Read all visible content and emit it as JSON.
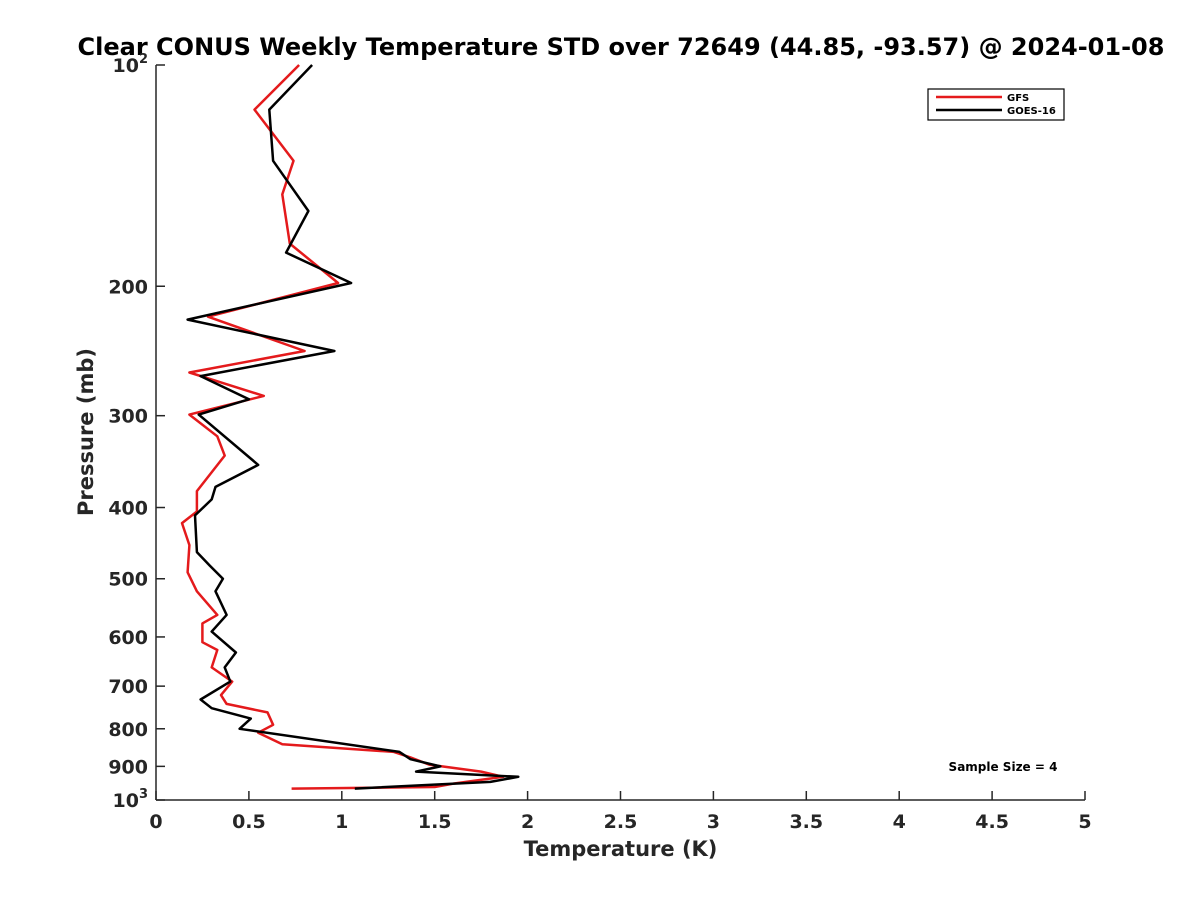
{
  "chart_data": {
    "type": "line",
    "title": "Clear CONUS Weekly Temperature STD over 72649 (44.85, -93.57) @ 2024-01-08",
    "xlabel": "Temperature (K)",
    "ylabel": "Pressure (mb)",
    "xlim": [
      0,
      5
    ],
    "ylim": [
      100,
      1000
    ],
    "y_scale": "log",
    "y_reversed": true,
    "x_ticks": [
      0,
      0.5,
      1,
      1.5,
      2,
      2.5,
      3,
      3.5,
      4,
      4.5,
      5
    ],
    "x_tick_labels": [
      "0",
      "0.5",
      "1",
      "1.5",
      "2",
      "2.5",
      "3",
      "3.5",
      "4",
      "4.5",
      "5"
    ],
    "y_ticks": [
      100,
      200,
      300,
      400,
      500,
      600,
      700,
      800,
      900,
      1000
    ],
    "y_tick_labels": [
      {
        "base": "10",
        "exp": "2"
      },
      {
        "text": "200"
      },
      {
        "text": "300"
      },
      {
        "text": "400"
      },
      {
        "text": "500"
      },
      {
        "text": "600"
      },
      {
        "text": "700"
      },
      {
        "text": "800"
      },
      {
        "text": "900"
      },
      {
        "base": "10",
        "exp": "3"
      }
    ],
    "grid": false,
    "legend": {
      "position": "top-right"
    },
    "annotation": "Sample Size = 4",
    "series": [
      {
        "name": "GFS",
        "color": "#e41a1c",
        "points": [
          [
            0.77,
            100
          ],
          [
            0.53,
            115
          ],
          [
            0.74,
            135
          ],
          [
            0.68,
            150
          ],
          [
            0.72,
            175
          ],
          [
            0.98,
            198
          ],
          [
            0.28,
            220
          ],
          [
            0.8,
            245
          ],
          [
            0.18,
            262
          ],
          [
            0.58,
            282
          ],
          [
            0.18,
            299
          ],
          [
            0.33,
            320
          ],
          [
            0.37,
            340
          ],
          [
            0.22,
            380
          ],
          [
            0.22,
            405
          ],
          [
            0.14,
            420
          ],
          [
            0.18,
            450
          ],
          [
            0.17,
            490
          ],
          [
            0.22,
            520
          ],
          [
            0.33,
            560
          ],
          [
            0.25,
            575
          ],
          [
            0.25,
            610
          ],
          [
            0.33,
            625
          ],
          [
            0.3,
            660
          ],
          [
            0.41,
            690
          ],
          [
            0.35,
            720
          ],
          [
            0.38,
            740
          ],
          [
            0.6,
            760
          ],
          [
            0.63,
            790
          ],
          [
            0.55,
            810
          ],
          [
            0.68,
            840
          ],
          [
            1.28,
            860
          ],
          [
            1.37,
            875
          ],
          [
            1.47,
            895
          ],
          [
            1.75,
            915
          ],
          [
            1.87,
            930
          ],
          [
            1.6,
            950
          ],
          [
            1.5,
            960
          ],
          [
            0.73,
            965
          ]
        ]
      },
      {
        "name": "GOES-16",
        "color": "#000000",
        "points": [
          [
            0.84,
            100
          ],
          [
            0.61,
            115
          ],
          [
            0.63,
            135
          ],
          [
            0.82,
            158
          ],
          [
            0.7,
            180
          ],
          [
            1.05,
            198
          ],
          [
            0.17,
            222
          ],
          [
            0.96,
            245
          ],
          [
            0.24,
            265
          ],
          [
            0.5,
            285
          ],
          [
            0.23,
            299
          ],
          [
            0.55,
            350
          ],
          [
            0.32,
            375
          ],
          [
            0.3,
            390
          ],
          [
            0.21,
            410
          ],
          [
            0.22,
            460
          ],
          [
            0.29,
            480
          ],
          [
            0.36,
            500
          ],
          [
            0.32,
            520
          ],
          [
            0.38,
            560
          ],
          [
            0.3,
            590
          ],
          [
            0.43,
            630
          ],
          [
            0.37,
            660
          ],
          [
            0.4,
            690
          ],
          [
            0.24,
            730
          ],
          [
            0.3,
            750
          ],
          [
            0.51,
            775
          ],
          [
            0.45,
            800
          ],
          [
            1.31,
            860
          ],
          [
            1.37,
            880
          ],
          [
            1.53,
            900
          ],
          [
            1.4,
            915
          ],
          [
            1.95,
            930
          ],
          [
            1.8,
            945
          ],
          [
            1.07,
            965
          ]
        ]
      }
    ]
  }
}
